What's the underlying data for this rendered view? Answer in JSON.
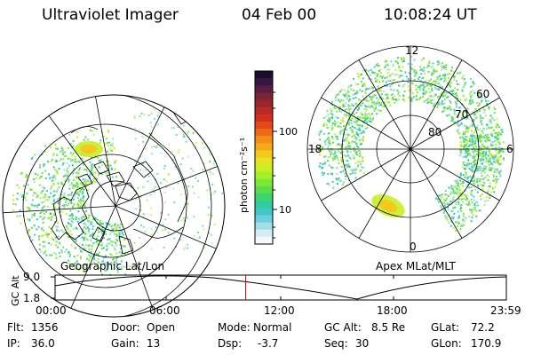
{
  "header": {
    "instrument": "Ultraviolet Imager",
    "date": "04 Feb 00",
    "time": "10:08:24 UT"
  },
  "left_panel": {
    "caption": "Geographic Lat/Lon"
  },
  "right_panel": {
    "caption": "Apex MLat/MLT",
    "mlt_labels": {
      "top": "12",
      "left": "18",
      "right": "6",
      "bottom": "0"
    },
    "lat_labels": [
      "60",
      "70",
      "80"
    ]
  },
  "colorbar": {
    "unit": "photon cm⁻²s⁻¹",
    "tick_labels": [
      "100",
      "10"
    ],
    "colors": [
      "#1a0f2e",
      "#3a1440",
      "#5a1e40",
      "#7a2436",
      "#9a262c",
      "#b82a24",
      "#d2301c",
      "#e4481a",
      "#ee6a18",
      "#f48c18",
      "#f6aa1a",
      "#f4c81e",
      "#e8e022",
      "#c8ee24",
      "#a2f02a",
      "#7ce836",
      "#58de4a",
      "#3ed470",
      "#30cca0",
      "#3ec6c8",
      "#6cd0dc",
      "#a2dee8",
      "#d6eef2",
      "#f4f8f8"
    ]
  },
  "altitude_plot": {
    "ylabel": "GC Alt",
    "ytick_labels": [
      "9.0",
      "1.8"
    ],
    "xtick_labels": [
      "00:00",
      "06:00",
      "12:00",
      "18:00",
      "23:59"
    ],
    "current_fraction_of_day": 0.4225
  },
  "info": {
    "flt_label": "Flt:",
    "flt_value": "1356",
    "ip_label": "IP:",
    "ip_value": "36.0",
    "door_label": "Door:",
    "door_value": "Open",
    "gain_label": "Gain:",
    "gain_value": "13",
    "mode_label": "Mode:",
    "mode_value": "Normal",
    "dsp_label": "Dsp:",
    "dsp_value": "-3.7",
    "gcalt_label": "GC Alt:",
    "gcalt_value": "8.5 Re",
    "seq_label": "Seq:",
    "seq_value": "30",
    "glat_label": "GLat:",
    "glat_value": "72.2",
    "glon_label": "GLon:",
    "glon_value": "170.9"
  }
}
